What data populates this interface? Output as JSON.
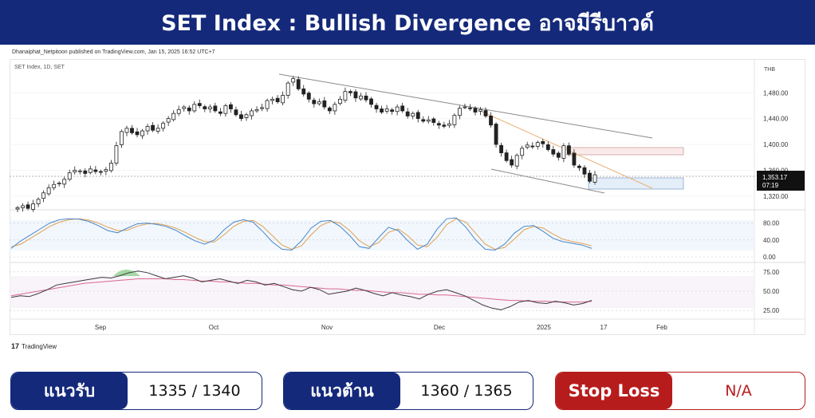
{
  "header": {
    "title": "SET Index : Bullish Divergence อาจมีรีบาวด์"
  },
  "published_line": "Dhanaiphat_Netpitoon published on TradingView.com, Jan 15, 2025 16:52 UTC+7",
  "chart_data": {
    "type": "candlestick",
    "symbol_label": "SET Index, 1D, SET",
    "currency_label": "THB",
    "x_labels": [
      "Sep",
      "Oct",
      "Nov",
      "Dec",
      "2025",
      "17",
      "Feb"
    ],
    "price_axis": {
      "ticks": [
        "1,480.00",
        "1,440.00",
        "1,400.00",
        "1,360.00",
        "1,320.00"
      ],
      "ylim": [
        1300,
        1510
      ]
    },
    "last_price_label": "1,353.17",
    "countdown_label": "07:19",
    "closes": [
      1302,
      1305,
      1301,
      1308,
      1315,
      1325,
      1333,
      1338,
      1340,
      1346,
      1356,
      1360,
      1359,
      1355,
      1362,
      1358,
      1357,
      1361,
      1371,
      1398,
      1420,
      1425,
      1418,
      1415,
      1421,
      1428,
      1422,
      1425,
      1433,
      1440,
      1448,
      1454,
      1458,
      1452,
      1462,
      1460,
      1455,
      1458,
      1452,
      1448,
      1460,
      1455,
      1446,
      1440,
      1446,
      1452,
      1454,
      1457,
      1468,
      1470,
      1466,
      1476,
      1495,
      1502,
      1486,
      1478,
      1470,
      1463,
      1466,
      1458,
      1452,
      1462,
      1470,
      1482,
      1480,
      1472,
      1475,
      1469,
      1462,
      1455,
      1450,
      1455,
      1451,
      1458,
      1452,
      1444,
      1448,
      1440,
      1436,
      1438,
      1434,
      1430,
      1428,
      1432,
      1445,
      1456,
      1458,
      1456,
      1450,
      1454,
      1444,
      1430,
      1400,
      1387,
      1375,
      1368,
      1383,
      1394,
      1399,
      1397,
      1403,
      1401,
      1392,
      1385,
      1380,
      1398,
      1385,
      1368,
      1364,
      1354,
      1343,
      1353
    ],
    "levels": {
      "support": "1335 / 1340",
      "resistance": "1360 / 1365",
      "stop_loss": "N/A"
    },
    "stoch": {
      "ticks": [
        "80.00",
        "40.00",
        "0.00"
      ],
      "ylim": [
        0,
        100
      ],
      "k": [
        20,
        38,
        52,
        66,
        80,
        88,
        90,
        89,
        84,
        74,
        62,
        57,
        68,
        78,
        80,
        77,
        72,
        63,
        50,
        38,
        30,
        40,
        64,
        82,
        88,
        82,
        60,
        35,
        18,
        16,
        38,
        68,
        84,
        86,
        72,
        50,
        24,
        20,
        46,
        70,
        62,
        38,
        18,
        30,
        65,
        90,
        92,
        70,
        40,
        18,
        16,
        30,
        56,
        72,
        74,
        60,
        44,
        36,
        32,
        28,
        20
      ],
      "d": [
        24,
        30,
        44,
        58,
        72,
        82,
        88,
        90,
        87,
        80,
        70,
        62,
        63,
        72,
        78,
        79,
        75,
        68,
        58,
        46,
        36,
        35,
        52,
        72,
        84,
        86,
        72,
        50,
        28,
        18,
        26,
        52,
        74,
        84,
        80,
        62,
        38,
        24,
        34,
        58,
        66,
        50,
        28,
        24,
        46,
        76,
        90,
        82,
        56,
        30,
        18,
        22,
        42,
        64,
        72,
        68,
        54,
        42,
        36,
        32,
        26
      ]
    },
    "rsi": {
      "ticks": [
        "75.00",
        "50.00",
        "25.00"
      ],
      "ylim": [
        18,
        82
      ],
      "rsi": [
        42,
        44,
        43,
        47,
        52,
        58,
        60,
        62,
        64,
        66,
        68,
        67,
        70,
        74,
        76,
        74,
        70,
        66,
        68,
        70,
        67,
        62,
        64,
        66,
        63,
        60,
        64,
        62,
        58,
        60,
        56,
        52,
        50,
        55,
        52,
        46,
        48,
        50,
        54,
        51,
        47,
        44,
        48,
        45,
        43,
        40,
        46,
        50,
        52,
        48,
        44,
        38,
        32,
        28,
        26,
        30,
        36,
        38,
        35,
        34,
        37,
        35,
        32,
        34,
        38
      ],
      "ma": [
        44,
        46,
        48,
        50,
        52,
        54,
        56,
        58,
        60,
        61,
        62,
        63,
        64,
        65,
        66,
        66,
        66,
        66,
        65,
        65,
        64,
        63,
        63,
        62,
        62,
        61,
        60,
        60,
        59,
        58,
        58,
        57,
        56,
        55,
        54,
        53,
        53,
        52,
        51,
        51,
        50,
        49,
        48,
        48,
        47,
        46,
        46,
        45,
        45,
        44,
        43,
        42,
        41,
        40,
        39,
        38,
        38,
        37,
        37,
        37,
        36,
        36,
        36,
        36,
        37
      ]
    }
  },
  "tv_logo": {
    "mark": "17",
    "label": "TradingView"
  },
  "level_boxes": [
    {
      "tag": "แนวรับ",
      "value": "1335 / 1340"
    },
    {
      "tag": "แนวต้าน",
      "value": "1360 / 1365"
    },
    {
      "tag": "Stop Loss",
      "value": "N/A"
    }
  ],
  "colors": {
    "navy": "#14297a",
    "red": "#b71c1c",
    "stoch_k": "#4a86c8",
    "stoch_d": "#e0a050",
    "rsi_line": "#3a3a3a",
    "rsi_ma": "#d86a8a"
  }
}
